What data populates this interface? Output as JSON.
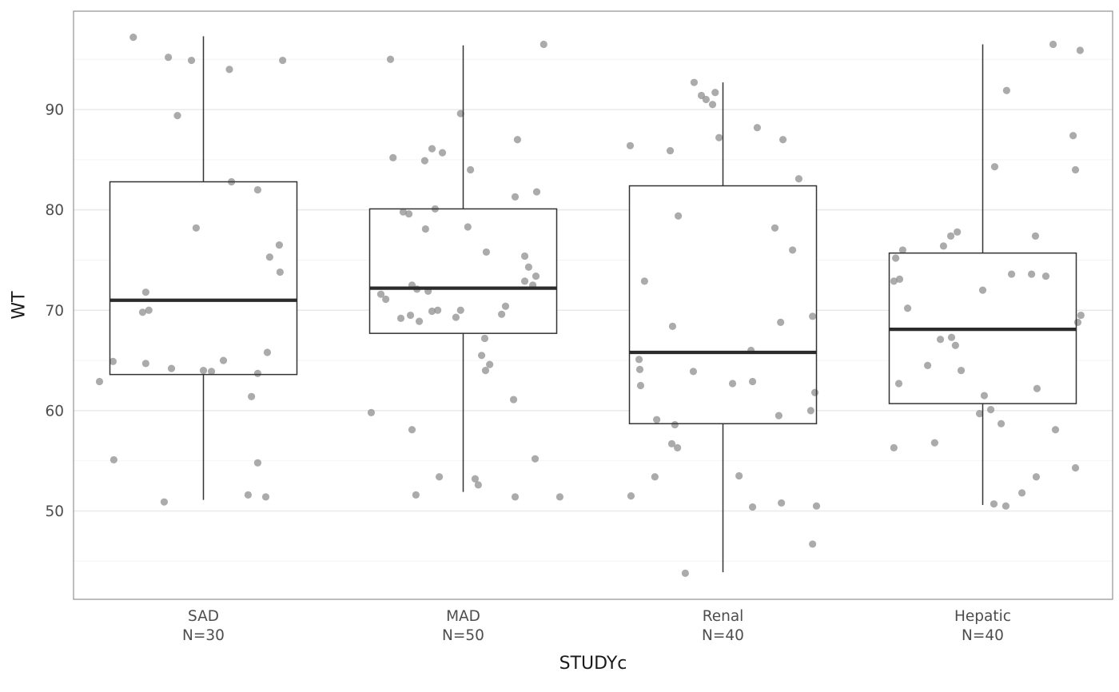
{
  "chart_data": {
    "type": "boxplot",
    "title": "",
    "xlabel": "STUDYc",
    "ylabel": "WT",
    "ylim": [
      41.2,
      99.8
    ],
    "grid": "major+minor",
    "legend": "none",
    "y_axis": {
      "ticks": [
        50,
        60,
        70,
        80,
        90
      ],
      "minor_ticks": [
        45,
        55,
        65,
        75,
        85,
        95
      ]
    },
    "boxes": [
      {
        "label": "SAD",
        "n_label": "N=30",
        "whisker_low": 51.1,
        "q1": 63.6,
        "median": 71.0,
        "q3": 82.8,
        "whisker_high": 97.3,
        "points": [
          [
            -0.27,
            97.2
          ],
          [
            -0.135,
            95.2
          ],
          [
            -0.046,
            94.9
          ],
          [
            -0.1,
            89.4
          ],
          [
            0.1,
            94.0
          ],
          [
            0.305,
            94.9
          ],
          [
            -0.028,
            78.2
          ],
          [
            0.108,
            82.8
          ],
          [
            0.209,
            82.0
          ],
          [
            0.255,
            75.3
          ],
          [
            0.292,
            76.5
          ],
          [
            0.295,
            73.8
          ],
          [
            -0.222,
            71.8
          ],
          [
            -0.234,
            69.8
          ],
          [
            -0.348,
            64.9
          ],
          [
            -0.222,
            64.7
          ],
          [
            -0.123,
            64.2
          ],
          [
            0.0,
            64.0
          ],
          [
            0.077,
            65.0
          ],
          [
            0.031,
            63.9
          ],
          [
            0.209,
            63.7
          ],
          [
            0.246,
            65.8
          ],
          [
            -0.4,
            62.9
          ],
          [
            0.185,
            61.4
          ],
          [
            -0.345,
            55.1
          ],
          [
            0.209,
            54.8
          ],
          [
            -0.151,
            50.9
          ],
          [
            0.172,
            51.6
          ],
          [
            0.24,
            51.4
          ],
          [
            -0.21,
            70.0
          ]
        ]
      },
      {
        "label": "MAD",
        "n_label": "N=50",
        "whisker_low": 51.9,
        "q1": 67.7,
        "median": 72.2,
        "q3": 80.1,
        "whisker_high": 96.4,
        "points": [
          [
            -0.28,
            95.0
          ],
          [
            -0.01,
            89.6
          ],
          [
            -0.27,
            85.2
          ],
          [
            -0.12,
            86.1
          ],
          [
            -0.08,
            85.7
          ],
          [
            -0.148,
            84.9
          ],
          [
            0.028,
            84.0
          ],
          [
            0.209,
            87.0
          ],
          [
            0.31,
            96.5
          ],
          [
            0.283,
            81.8
          ],
          [
            -0.231,
            79.8
          ],
          [
            -0.209,
            79.6
          ],
          [
            -0.108,
            80.1
          ],
          [
            -0.145,
            78.1
          ],
          [
            0.018,
            78.3
          ],
          [
            0.089,
            75.8
          ],
          [
            0.237,
            75.4
          ],
          [
            0.252,
            74.3
          ],
          [
            0.28,
            73.4
          ],
          [
            0.268,
            72.5
          ],
          [
            -0.317,
            71.6
          ],
          [
            -0.298,
            71.1
          ],
          [
            -0.197,
            72.5
          ],
          [
            -0.178,
            72.1
          ],
          [
            -0.135,
            71.9
          ],
          [
            -0.24,
            69.2
          ],
          [
            -0.203,
            69.5
          ],
          [
            -0.169,
            68.9
          ],
          [
            -0.12,
            69.9
          ],
          [
            -0.098,
            70.0
          ],
          [
            -0.028,
            69.3
          ],
          [
            -0.01,
            70.0
          ],
          [
            0.163,
            70.4
          ],
          [
            0.148,
            69.6
          ],
          [
            0.083,
            67.2
          ],
          [
            0.102,
            64.6
          ],
          [
            0.086,
            64.0
          ],
          [
            0.194,
            61.1
          ],
          [
            -0.354,
            59.8
          ],
          [
            -0.197,
            58.1
          ],
          [
            -0.182,
            51.6
          ],
          [
            -0.092,
            53.4
          ],
          [
            0.046,
            53.2
          ],
          [
            0.058,
            52.6
          ],
          [
            0.2,
            51.4
          ],
          [
            0.277,
            55.2
          ],
          [
            0.372,
            51.4
          ],
          [
            0.2,
            81.3
          ],
          [
            0.237,
            72.9
          ],
          [
            0.071,
            65.5
          ]
        ]
      },
      {
        "label": "Renal",
        "n_label": "N=40",
        "whisker_low": 43.9,
        "q1": 58.7,
        "median": 65.8,
        "q3": 82.4,
        "whisker_high": 92.7,
        "points": [
          [
            -0.111,
            92.7
          ],
          [
            -0.083,
            91.4
          ],
          [
            -0.065,
            91.0
          ],
          [
            -0.04,
            90.5
          ],
          [
            -0.015,
            87.2
          ],
          [
            -0.357,
            86.4
          ],
          [
            -0.203,
            85.9
          ],
          [
            0.132,
            88.2
          ],
          [
            0.231,
            87.0
          ],
          [
            0.292,
            83.1
          ],
          [
            -0.172,
            79.4
          ],
          [
            0.2,
            78.2
          ],
          [
            0.268,
            76.0
          ],
          [
            -0.302,
            72.9
          ],
          [
            -0.194,
            68.4
          ],
          [
            0.222,
            68.8
          ],
          [
            0.345,
            69.4
          ],
          [
            -0.323,
            65.1
          ],
          [
            -0.32,
            64.1
          ],
          [
            -0.114,
            63.9
          ],
          [
            0.108,
            66.0
          ],
          [
            0.114,
            62.9
          ],
          [
            0.037,
            62.7
          ],
          [
            -0.317,
            62.5
          ],
          [
            -0.255,
            59.1
          ],
          [
            -0.185,
            58.6
          ],
          [
            0.215,
            59.5
          ],
          [
            0.338,
            60.0
          ],
          [
            0.354,
            61.8
          ],
          [
            -0.197,
            56.7
          ],
          [
            -0.175,
            56.3
          ],
          [
            -0.262,
            53.4
          ],
          [
            -0.354,
            51.5
          ],
          [
            0.114,
            50.4
          ],
          [
            0.225,
            50.8
          ],
          [
            0.36,
            50.5
          ],
          [
            0.345,
            46.7
          ],
          [
            -0.145,
            43.8
          ],
          [
            0.062,
            53.5
          ],
          [
            -0.03,
            91.7
          ]
        ]
      },
      {
        "label": "Hepatic",
        "n_label": "N=40",
        "whisker_low": 50.6,
        "q1": 60.7,
        "median": 68.1,
        "q3": 75.7,
        "whisker_high": 96.5,
        "points": [
          [
            0.271,
            96.5
          ],
          [
            0.375,
            95.9
          ],
          [
            0.092,
            91.9
          ],
          [
            0.348,
            87.4
          ],
          [
            0.357,
            84.0
          ],
          [
            0.046,
            84.3
          ],
          [
            0.203,
            77.4
          ],
          [
            -0.308,
            76.0
          ],
          [
            -0.335,
            75.2
          ],
          [
            -0.151,
            76.4
          ],
          [
            -0.123,
            77.4
          ],
          [
            -0.098,
            77.8
          ],
          [
            0.111,
            73.6
          ],
          [
            0.188,
            73.6
          ],
          [
            0.243,
            73.4
          ],
          [
            -0.342,
            72.9
          ],
          [
            -0.32,
            73.1
          ],
          [
            0.0,
            72.0
          ],
          [
            -0.289,
            70.2
          ],
          [
            0.378,
            69.5
          ],
          [
            0.366,
            68.8
          ],
          [
            -0.163,
            67.1
          ],
          [
            -0.12,
            67.3
          ],
          [
            -0.105,
            66.5
          ],
          [
            -0.212,
            64.5
          ],
          [
            -0.083,
            64.0
          ],
          [
            0.006,
            61.5
          ],
          [
            0.031,
            60.1
          ],
          [
            -0.012,
            59.7
          ],
          [
            0.071,
            58.7
          ],
          [
            -0.323,
            62.7
          ],
          [
            0.209,
            62.2
          ],
          [
            -0.342,
            56.3
          ],
          [
            -0.185,
            56.8
          ],
          [
            0.043,
            50.7
          ],
          [
            0.089,
            50.5
          ],
          [
            0.151,
            51.8
          ],
          [
            0.206,
            53.4
          ],
          [
            0.28,
            58.1
          ],
          [
            0.357,
            54.3
          ]
        ]
      }
    ],
    "style": {
      "background": "#ffffff",
      "panel_background": "#ffffff",
      "panel_border": "#9a9a9a",
      "grid_major_color": "#e9e9e9",
      "grid_minor_color": "#f4f4f4",
      "box_stroke": "#333333",
      "box_fill": "#ffffff",
      "median_color": "#2b2b2b",
      "point_color": "#8f8f8f",
      "point_opacity": 0.75,
      "axis_text_color": "#4d4d4d",
      "axis_title_color": "#1a1a1a"
    }
  }
}
